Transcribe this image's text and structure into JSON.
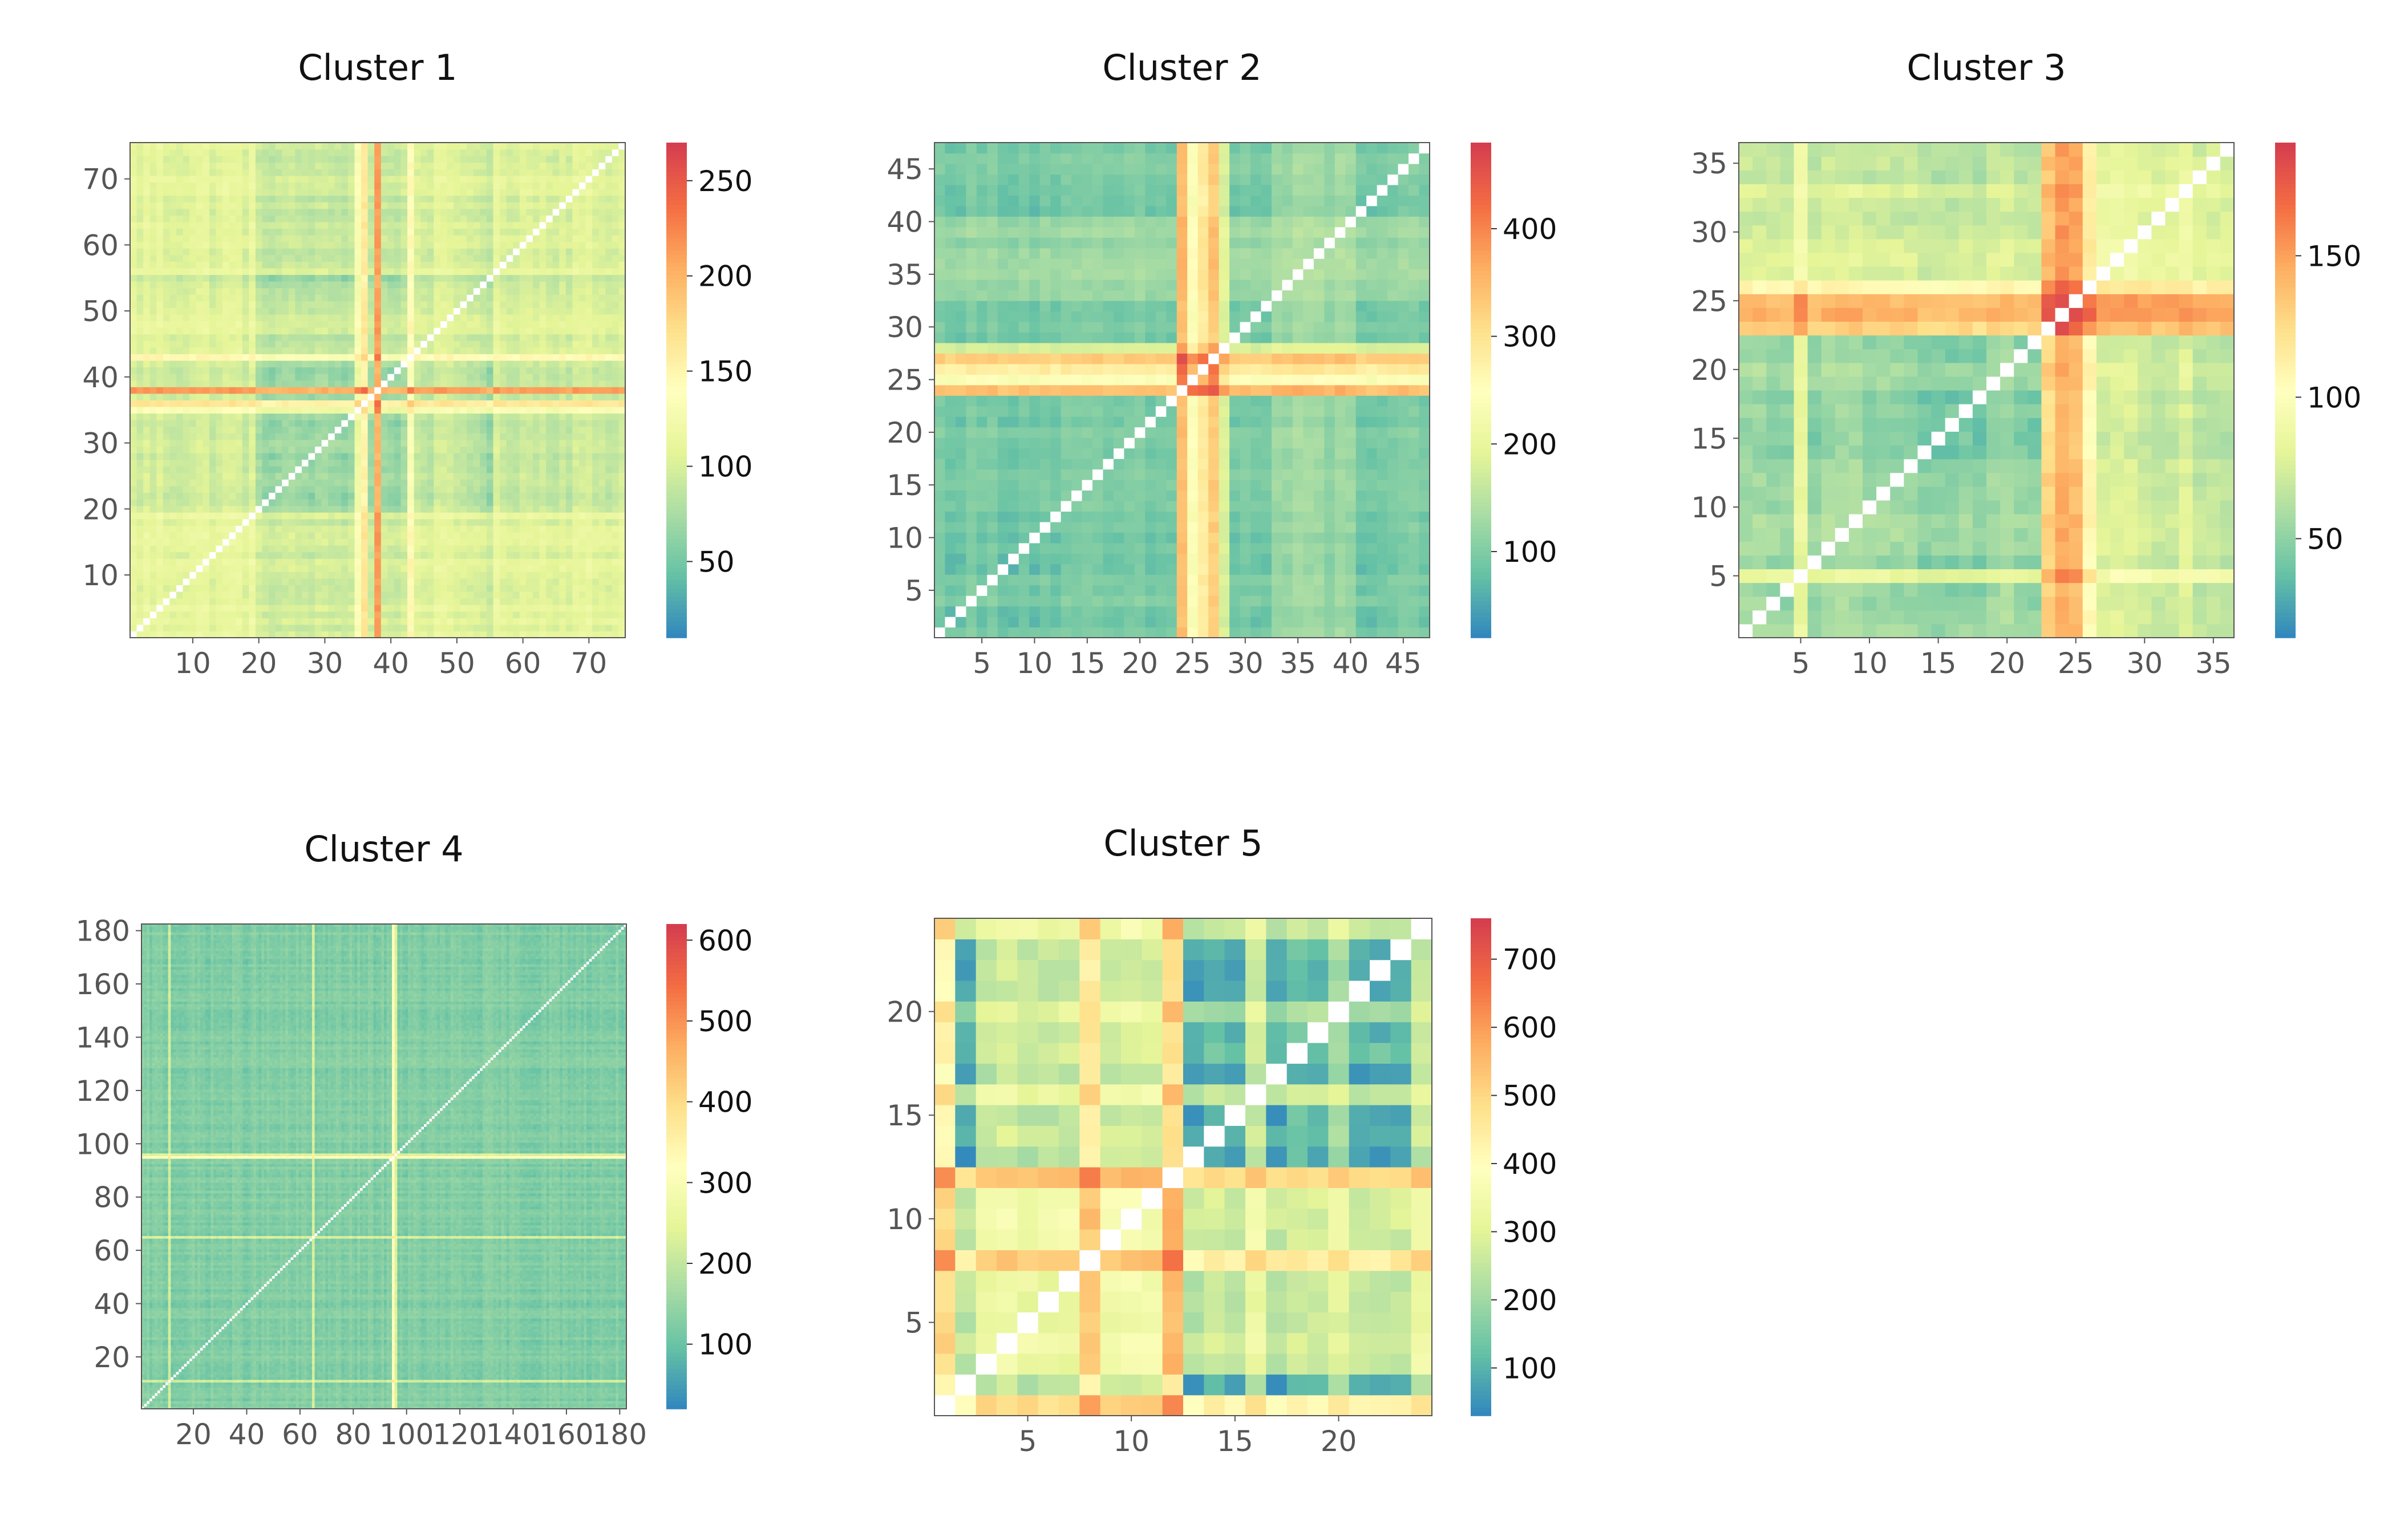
{
  "colorscale": {
    "name": "Spectral_r",
    "stops": [
      "#3288bd",
      "#66c2a5",
      "#abdda4",
      "#e6f598",
      "#ffffbf",
      "#fee08b",
      "#fdae61",
      "#f46d43",
      "#d53e4f"
    ],
    "diagonal_color": "#ffffff"
  },
  "chart_data": [
    {
      "type": "heatmap",
      "title": "Cluster 1",
      "n": 75,
      "xlabel": "",
      "ylabel": "",
      "xticks": [
        10,
        20,
        30,
        40,
        50,
        60,
        70
      ],
      "yticks": [
        10,
        20,
        30,
        40,
        50,
        60,
        70
      ],
      "colorbar": {
        "range": [
          10,
          270
        ],
        "ticks": [
          50,
          100,
          150,
          200,
          250
        ]
      },
      "structure": {
        "base": 60,
        "variation": 25,
        "blocks": [
          [
            1,
            18,
            40
          ],
          [
            56,
            75,
            35
          ],
          [
            44,
            53,
            30
          ]
        ],
        "hot_rows": {
          "38": 240,
          "36": 175,
          "43": 150,
          "35": 130,
          "19": 110
        }
      }
    },
    {
      "type": "heatmap",
      "title": "Cluster 2",
      "n": 47,
      "xlabel": "",
      "ylabel": "",
      "xticks": [
        5,
        10,
        15,
        20,
        25,
        30,
        35,
        40,
        45
      ],
      "yticks": [
        5,
        10,
        15,
        20,
        25,
        30,
        35,
        40,
        45
      ],
      "colorbar": {
        "range": [
          20,
          480
        ],
        "ticks": [
          100,
          200,
          300,
          400
        ]
      },
      "structure": {
        "base": 80,
        "variation": 40,
        "blocks": [
          [
            33,
            40,
            40
          ]
        ],
        "hot_rows": {
          "24": 420,
          "27": 400,
          "26": 340,
          "25": 280,
          "28": 200
        }
      }
    },
    {
      "type": "heatmap",
      "title": "Cluster 3",
      "n": 36,
      "xlabel": "",
      "ylabel": "",
      "xticks": [
        5,
        10,
        15,
        20,
        25,
        30,
        35
      ],
      "yticks": [
        5,
        10,
        15,
        20,
        25,
        30,
        35
      ],
      "colorbar": {
        "range": [
          15,
          190
        ],
        "ticks": [
          50,
          100,
          150
        ]
      },
      "structure": {
        "base": 45,
        "variation": 25,
        "blocks": [
          [
            26,
            36,
            25
          ]
        ],
        "hot_rows": {
          "24": 170,
          "25": 165,
          "23": 150,
          "26": 120,
          "5": 90
        }
      }
    },
    {
      "type": "heatmap",
      "title": "Cluster 4",
      "n": 182,
      "xlabel": "",
      "ylabel": "",
      "xticks": [
        20,
        40,
        60,
        80,
        100,
        120,
        140,
        160,
        180
      ],
      "yticks": [
        20,
        40,
        60,
        80,
        100,
        120,
        140,
        160,
        180
      ],
      "colorbar": {
        "range": [
          20,
          620
        ],
        "ticks": [
          100,
          200,
          300,
          400,
          500,
          600
        ]
      },
      "structure": {
        "base": 110,
        "variation": 45,
        "blocks": [],
        "hot_rows": {
          "95": 380,
          "65": 250,
          "11": 240,
          "96": 260
        }
      }
    },
    {
      "type": "heatmap",
      "title": "Cluster 5",
      "n": 24,
      "xlabel": "",
      "ylabel": "",
      "xticks": [
        5,
        10,
        15,
        20
      ],
      "yticks": [
        5,
        10,
        15,
        20
      ],
      "colorbar": {
        "range": [
          30,
          760
        ],
        "ticks": [
          100,
          200,
          300,
          400,
          500,
          600,
          700
        ]
      },
      "structure": {
        "base": 300,
        "variation": 120,
        "blocks": [
          [
            1,
            2,
            -250
          ],
          [
            13,
            15,
            -220
          ],
          [
            17,
            19,
            -220
          ],
          [
            21,
            23,
            -220
          ]
        ],
        "hot_rows": {
          "12": 600,
          "8": 560,
          "1": 520
        }
      }
    }
  ]
}
